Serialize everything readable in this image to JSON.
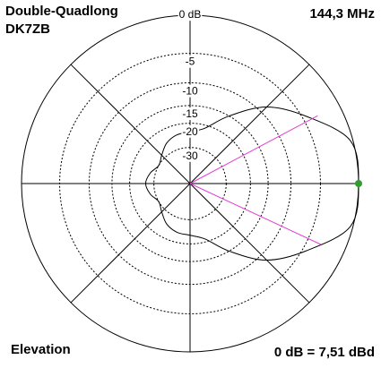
{
  "chart_data": {
    "type": "polar",
    "title": "Double-Quadlong",
    "subtitle": "DK7ZB",
    "frequency": "144,3 MHz",
    "view": "Elevation",
    "reference": "0 dB = 7,51 dBd",
    "x": [
      0,
      15,
      30,
      45,
      60,
      75,
      90,
      105,
      120,
      135,
      150,
      165,
      180,
      195,
      210,
      225,
      240,
      255,
      270,
      285,
      300,
      315,
      330,
      345
    ],
    "values": [
      0,
      -0.3,
      -4.4,
      -8.6,
      -15,
      -21,
      -23,
      -23.5,
      -25,
      -28,
      -30,
      -27.5,
      -26,
      -27.5,
      -30,
      -28,
      -25,
      -23.5,
      -23,
      -21,
      -15,
      -8.6,
      -4.4,
      -0.3
    ],
    "color": "#000000",
    "rticks": [
      {
        "value": 0,
        "label": "0 dB"
      },
      {
        "value": -5,
        "label": "-5"
      },
      -10,
      -15,
      -20,
      -30
    ],
    "beam_angles": [
      28,
      -25
    ],
    "beam_color": "#e040d0",
    "marker_color": "#2e9e2e",
    "grid": true
  }
}
